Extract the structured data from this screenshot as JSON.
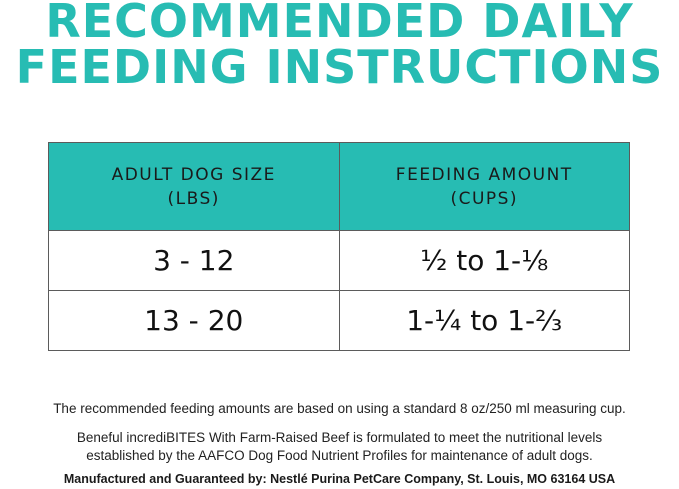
{
  "heading": {
    "line1": "RECOMMENDED DAILY",
    "line2": "FEEDING INSTRUCTIONS"
  },
  "table": {
    "headers": [
      {
        "line1": "ADULT DOG SIZE",
        "line2": "(LBS)"
      },
      {
        "line1": "FEEDING AMOUNT",
        "line2": "(CUPS)"
      }
    ],
    "rows": [
      [
        "3 - 12",
        "½ to 1-⅛"
      ],
      [
        "13 - 20",
        "1-¼ to 1-⅔"
      ]
    ]
  },
  "notes": {
    "measuring": "The recommended feeding amounts are based on using a standard 8 oz/250 ml measuring cup.",
    "formulation_line1": "Beneful incrediBITES With Farm-Raised Beef is formulated to meet the nutritional levels",
    "formulation_line2": "established by the AAFCO Dog Food Nutrient Profiles for maintenance of adult dogs.",
    "manufacturer": "Manufactured and Guaranteed by: Nestlé Purina PetCare Company, St. Louis, MO 63164 USA"
  },
  "colors": {
    "accent": "#27bcb3",
    "text": "#1a1a1a",
    "border": "#5b5b5b"
  }
}
